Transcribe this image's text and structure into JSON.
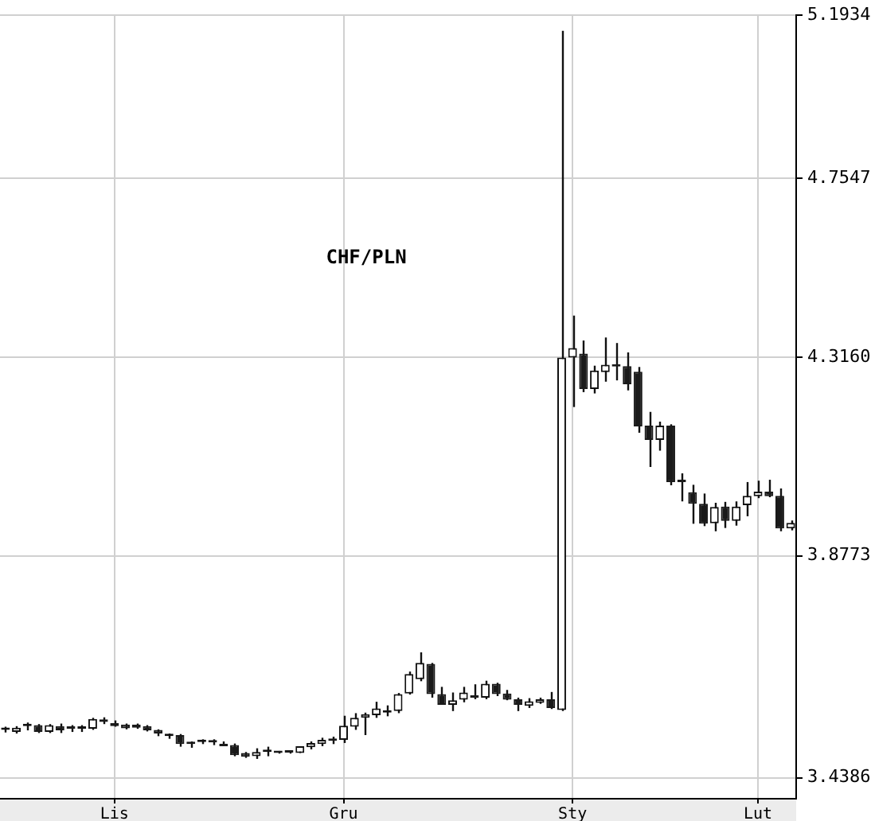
{
  "chart_data": {
    "type": "candlestick",
    "title": "CHF/PLN",
    "categories": [
      null,
      null,
      null,
      null,
      null,
      null,
      null,
      null,
      null,
      null,
      "Lis",
      null,
      null,
      null,
      null,
      null,
      null,
      null,
      null,
      null,
      null,
      null,
      null,
      null,
      null,
      null,
      null,
      null,
      null,
      null,
      null,
      "Gru",
      null,
      null,
      null,
      null,
      null,
      null,
      null,
      null,
      null,
      null,
      null,
      null,
      null,
      null,
      null,
      null,
      null,
      null,
      null,
      null,
      "Sty",
      null,
      null,
      null,
      null,
      null,
      null,
      null,
      null,
      null,
      null,
      null,
      null,
      null,
      null,
      null,
      null,
      "Lut",
      null,
      null,
      null
    ],
    "ohlc": [
      [
        3.529,
        3.535,
        3.524,
        3.53
      ],
      [
        3.525,
        3.536,
        3.522,
        3.533
      ],
      [
        3.536,
        3.543,
        3.528,
        3.537
      ],
      [
        3.538,
        3.54,
        3.523,
        3.525
      ],
      [
        3.525,
        3.54,
        3.523,
        3.538
      ],
      [
        3.536,
        3.541,
        3.523,
        3.528
      ],
      [
        3.532,
        3.538,
        3.525,
        3.531
      ],
      [
        3.531,
        3.538,
        3.525,
        3.532
      ],
      [
        3.531,
        3.552,
        3.529,
        3.55
      ],
      [
        3.549,
        3.553,
        3.54,
        3.544
      ],
      [
        3.542,
        3.547,
        3.535,
        3.536
      ],
      [
        3.539,
        3.541,
        3.53,
        3.532
      ],
      [
        3.539,
        3.541,
        3.531,
        3.533
      ],
      [
        3.536,
        3.538,
        3.526,
        3.528
      ],
      [
        3.529,
        3.53,
        3.517,
        3.522
      ],
      [
        3.517,
        3.522,
        3.512,
        3.518
      ],
      [
        3.519,
        3.521,
        3.497,
        3.502
      ],
      [
        3.503,
        3.507,
        3.495,
        3.502
      ],
      [
        3.506,
        3.511,
        3.502,
        3.507
      ],
      [
        3.506,
        3.511,
        3.5,
        3.505
      ],
      [
        3.502,
        3.507,
        3.498,
        3.498
      ],
      [
        3.5,
        3.503,
        3.479,
        3.481
      ],
      [
        3.485,
        3.487,
        3.476,
        3.478
      ],
      [
        3.479,
        3.494,
        3.474,
        3.487
      ],
      [
        3.487,
        3.497,
        3.479,
        3.488
      ],
      [
        3.488,
        3.489,
        3.484,
        3.485
      ],
      [
        3.488,
        3.489,
        3.484,
        3.486
      ],
      [
        3.485,
        3.498,
        3.485,
        3.498
      ],
      [
        3.496,
        3.507,
        3.492,
        3.504
      ],
      [
        3.502,
        3.514,
        3.498,
        3.51
      ],
      [
        3.512,
        3.516,
        3.502,
        3.508
      ],
      [
        3.51,
        3.556,
        3.504,
        3.537
      ],
      [
        3.535,
        3.561,
        3.529,
        3.552
      ],
      [
        3.552,
        3.562,
        3.519,
        3.559
      ],
      [
        3.557,
        3.583,
        3.552,
        3.57
      ],
      [
        3.562,
        3.576,
        3.555,
        3.563
      ],
      [
        3.565,
        3.6,
        3.561,
        3.598
      ],
      [
        3.599,
        3.642,
        3.597,
        3.637
      ],
      [
        3.627,
        3.68,
        3.623,
        3.659
      ],
      [
        3.657,
        3.659,
        3.591,
        3.598
      ],
      [
        3.598,
        3.612,
        3.577,
        3.577
      ],
      [
        3.577,
        3.601,
        3.565,
        3.586
      ],
      [
        3.587,
        3.612,
        3.582,
        3.601
      ],
      [
        3.595,
        3.617,
        3.588,
        3.591
      ],
      [
        3.591,
        3.624,
        3.588,
        3.618
      ],
      [
        3.618,
        3.62,
        3.594,
        3.598
      ],
      [
        3.599,
        3.606,
        3.586,
        3.587
      ],
      [
        3.588,
        3.591,
        3.565,
        3.577
      ],
      [
        3.575,
        3.59,
        3.571,
        3.584
      ],
      [
        3.581,
        3.591,
        3.579,
        3.588
      ],
      [
        3.588,
        3.602,
        3.569,
        3.571
      ],
      [
        3.567,
        5.15,
        3.565,
        4.316
      ],
      [
        4.316,
        4.415,
        4.202,
        4.338
      ],
      [
        4.325,
        4.356,
        4.236,
        4.243
      ],
      [
        4.243,
        4.297,
        4.233,
        4.286
      ],
      [
        4.282,
        4.363,
        4.26,
        4.299
      ],
      [
        4.299,
        4.35,
        4.263,
        4.295
      ],
      [
        4.296,
        4.328,
        4.24,
        4.254
      ],
      [
        4.283,
        4.294,
        4.144,
        4.158
      ],
      [
        4.16,
        4.191,
        4.068,
        4.128
      ],
      [
        4.128,
        4.169,
        4.104,
        4.16
      ],
      [
        4.16,
        4.163,
        4.028,
        4.035
      ],
      [
        4.036,
        4.054,
        3.993,
        4.035
      ],
      [
        4.013,
        4.029,
        3.945,
        3.988
      ],
      [
        3.988,
        4.01,
        3.94,
        3.945
      ],
      [
        3.946,
        3.99,
        3.929,
        3.981
      ],
      [
        3.982,
        3.992,
        3.936,
        3.951
      ],
      [
        3.951,
        3.993,
        3.941,
        3.982
      ],
      [
        3.985,
        4.035,
        3.961,
        4.005
      ],
      [
        4.004,
        4.038,
        4.0,
        4.014
      ],
      [
        4.014,
        4.04,
        4.002,
        4.004
      ],
      [
        4.005,
        4.021,
        3.929,
        3.935
      ],
      [
        3.935,
        3.952,
        3.931,
        3.947
      ]
    ],
    "ylim": [
      3.4386,
      5.1934
    ],
    "yticks": [
      3.4386,
      3.8773,
      {
        "value": 4.316,
        "label": "4.3160"
      },
      4.7547,
      5.1934
    ],
    "log": true,
    "grid": true
  }
}
